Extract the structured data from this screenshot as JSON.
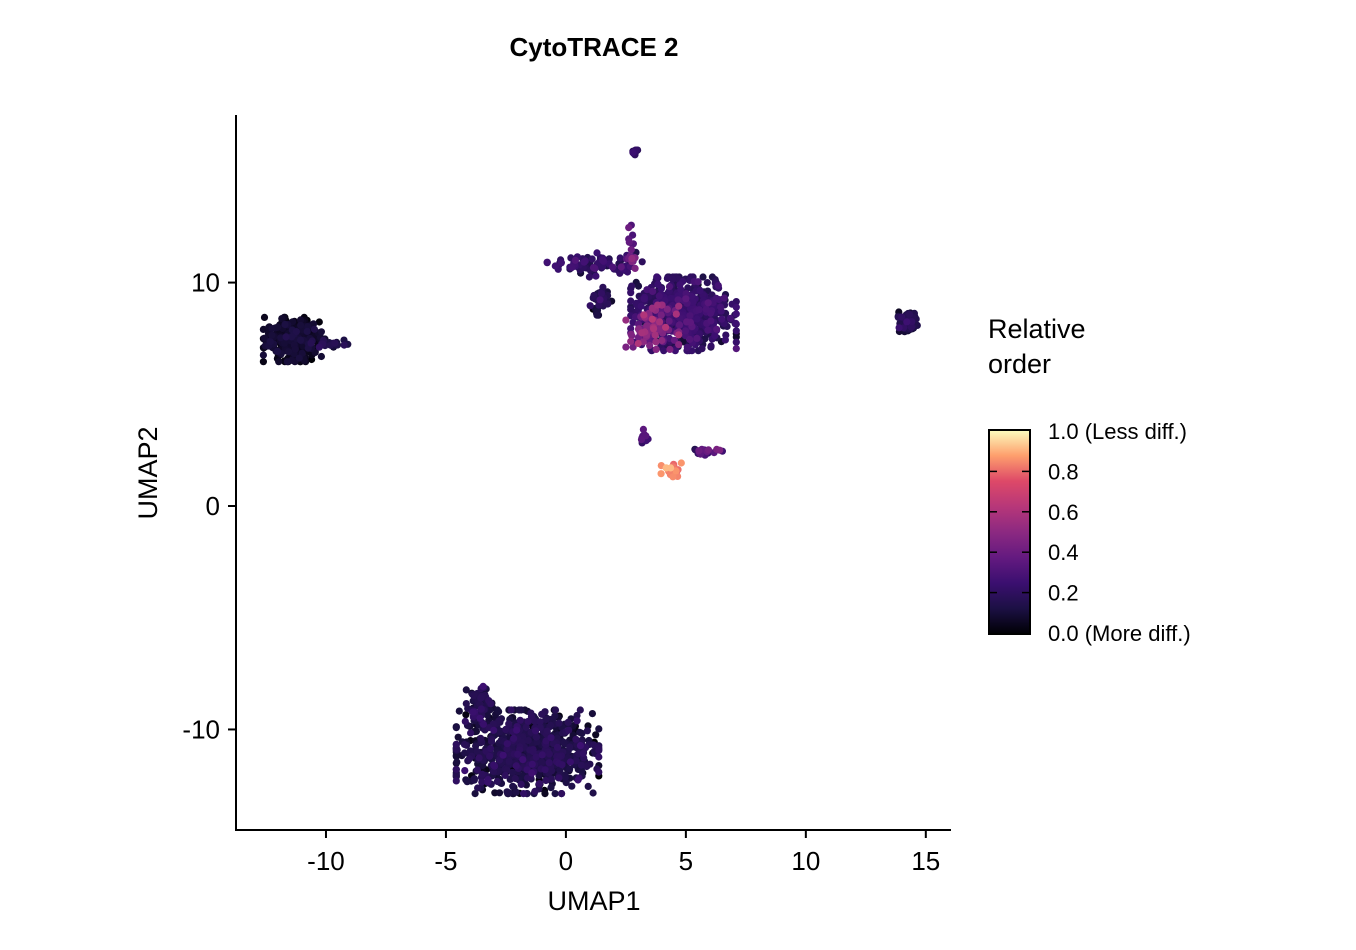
{
  "chart_data": {
    "type": "scatter",
    "title": "CytoTRACE 2",
    "xlabel": "UMAP1",
    "ylabel": "UMAP2",
    "xlim": [
      -13.75,
      16.05
    ],
    "ylim": [
      -14.5,
      17.5
    ],
    "xticks": [
      -10,
      -5,
      0,
      5,
      10,
      15
    ],
    "xtick_labels": [
      "-10",
      "-5",
      "0",
      "5",
      "10",
      "15"
    ],
    "yticks": [
      -10,
      0,
      10
    ],
    "ytick_labels": [
      "-10",
      "0",
      "10"
    ],
    "grid": false,
    "legend": {
      "title_lines": [
        "Relative",
        "order"
      ],
      "placement": "right",
      "colormap": "magma",
      "range": [
        0,
        1
      ],
      "ticks": [
        1.0,
        0.8,
        0.6,
        0.4,
        0.2,
        0.0
      ],
      "tick_labels": [
        "1.0 (Less diff.)",
        "0.8",
        "0.6",
        "0.4",
        "0.2",
        "0.0 (More diff.)"
      ]
    },
    "clusters": [
      {
        "name": "left",
        "cx": -11.4,
        "cy": 7.45,
        "sx": 0.55,
        "sy": 0.45,
        "n": 380,
        "value": 0.06,
        "vsd": 0.03
      },
      {
        "name": "left-tail",
        "cx": -9.9,
        "cy": 7.25,
        "sx": 0.4,
        "sy": 0.12,
        "n": 25,
        "value": 0.12,
        "vsd": 0.04
      },
      {
        "name": "bottom",
        "cx": -1.6,
        "cy": -11.0,
        "sx": 1.35,
        "sy": 0.85,
        "n": 900,
        "value": 0.12,
        "vsd": 0.05
      },
      {
        "name": "bottom-arc",
        "cx": -3.6,
        "cy": -9.0,
        "sx": 0.25,
        "sy": 0.5,
        "n": 70,
        "value": 0.15,
        "vsd": 0.05
      },
      {
        "name": "main",
        "cx": 4.9,
        "cy": 8.6,
        "sx": 1.0,
        "sy": 0.75,
        "n": 650,
        "value": 0.2,
        "vsd": 0.06
      },
      {
        "name": "main-red",
        "cx": 3.6,
        "cy": 8.0,
        "sx": 0.5,
        "sy": 0.45,
        "n": 90,
        "value": 0.45,
        "vsd": 0.08
      },
      {
        "name": "main-arm",
        "cx": 1.2,
        "cy": 10.8,
        "sx": 0.9,
        "sy": 0.25,
        "n": 90,
        "value": 0.2,
        "vsd": 0.06
      },
      {
        "name": "main-stalk",
        "cx": 2.75,
        "cy": 11.5,
        "sx": 0.06,
        "sy": 0.6,
        "n": 20,
        "value": 0.38,
        "vsd": 0.06
      },
      {
        "name": "main-side",
        "cx": 1.4,
        "cy": 9.2,
        "sx": 0.25,
        "sy": 0.3,
        "n": 40,
        "value": 0.15,
        "vsd": 0.05
      },
      {
        "name": "right",
        "cx": 14.25,
        "cy": 8.2,
        "sx": 0.18,
        "sy": 0.22,
        "n": 90,
        "value": 0.12,
        "vsd": 0.05
      },
      {
        "name": "top",
        "cx": 2.85,
        "cy": 15.85,
        "sx": 0.08,
        "sy": 0.06,
        "n": 12,
        "value": 0.2,
        "vsd": 0.02
      },
      {
        "name": "small-mid",
        "cx": 3.25,
        "cy": 3.1,
        "sx": 0.08,
        "sy": 0.15,
        "n": 10,
        "value": 0.3,
        "vsd": 0.1
      },
      {
        "name": "orange",
        "cx": 4.4,
        "cy": 1.6,
        "sx": 0.2,
        "sy": 0.15,
        "n": 20,
        "value": 0.8,
        "vsd": 0.05
      },
      {
        "name": "streak",
        "cx": 5.9,
        "cy": 2.45,
        "sx": 0.3,
        "sy": 0.08,
        "n": 20,
        "value": 0.28,
        "vsd": 0.08
      }
    ]
  }
}
